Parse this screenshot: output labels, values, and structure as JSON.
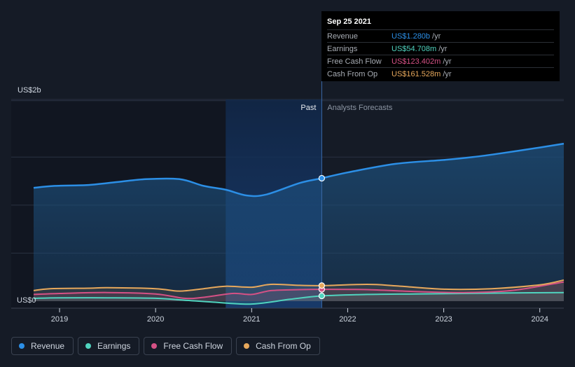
{
  "chart_data": {
    "type": "area",
    "y_unit_labels": {
      "top": "US$2b",
      "bottom": "US$0"
    },
    "ylim": [
      0,
      2.1
    ],
    "xlim": [
      2018.73,
      2024.25
    ],
    "x_ticks": [
      2019,
      2020,
      2021,
      2022,
      2023,
      2024
    ],
    "x_tick_labels": [
      "2019",
      "2020",
      "2021",
      "2022",
      "2023",
      "2024"
    ],
    "past_label": "Past",
    "forecast_label": "Analysts Forecasts",
    "divider_x": 2021.73,
    "past_highlight_start": 2020.73,
    "series": [
      {
        "name": "Revenue",
        "color": "#2c8fe6",
        "points": [
          [
            2018.73,
            1.18
          ],
          [
            2018.95,
            1.2
          ],
          [
            2019.3,
            1.21
          ],
          [
            2019.6,
            1.24
          ],
          [
            2019.9,
            1.27
          ],
          [
            2020.25,
            1.27
          ],
          [
            2020.5,
            1.2
          ],
          [
            2020.73,
            1.16
          ],
          [
            2020.95,
            1.1
          ],
          [
            2021.15,
            1.11
          ],
          [
            2021.5,
            1.23
          ],
          [
            2021.73,
            1.28
          ],
          [
            2022.0,
            1.34
          ],
          [
            2022.5,
            1.43
          ],
          [
            2023.0,
            1.47
          ],
          [
            2023.3,
            1.5
          ],
          [
            2023.6,
            1.54
          ],
          [
            2024.0,
            1.6
          ],
          [
            2024.25,
            1.64
          ]
        ]
      },
      {
        "name": "Earnings",
        "color": "#50d4bf",
        "points": [
          [
            2018.73,
            0.03
          ],
          [
            2019.0,
            0.035
          ],
          [
            2019.5,
            0.035
          ],
          [
            2020.0,
            0.03
          ],
          [
            2020.3,
            0.01
          ],
          [
            2020.6,
            -0.01
          ],
          [
            2021.0,
            -0.03
          ],
          [
            2021.4,
            0.02
          ],
          [
            2021.73,
            0.055
          ],
          [
            2022.2,
            0.07
          ],
          [
            2022.7,
            0.075
          ],
          [
            2023.2,
            0.08
          ],
          [
            2023.7,
            0.085
          ],
          [
            2024.25,
            0.09
          ]
        ]
      },
      {
        "name": "Free Cash Flow",
        "color": "#d55185",
        "points": [
          [
            2018.73,
            0.07
          ],
          [
            2019.0,
            0.08
          ],
          [
            2019.5,
            0.09
          ],
          [
            2020.0,
            0.075
          ],
          [
            2020.3,
            0.03
          ],
          [
            2020.5,
            0.04
          ],
          [
            2020.8,
            0.08
          ],
          [
            2021.0,
            0.07
          ],
          [
            2021.2,
            0.11
          ],
          [
            2021.5,
            0.12
          ],
          [
            2021.73,
            0.123
          ],
          [
            2022.2,
            0.12
          ],
          [
            2022.7,
            0.1
          ],
          [
            2023.2,
            0.09
          ],
          [
            2023.7,
            0.11
          ],
          [
            2024.25,
            0.2
          ]
        ]
      },
      {
        "name": "Cash From Op",
        "color": "#e7a85c",
        "points": [
          [
            2018.73,
            0.11
          ],
          [
            2018.9,
            0.13
          ],
          [
            2019.3,
            0.135
          ],
          [
            2019.5,
            0.14
          ],
          [
            2020.0,
            0.13
          ],
          [
            2020.25,
            0.105
          ],
          [
            2020.5,
            0.13
          ],
          [
            2020.73,
            0.155
          ],
          [
            2021.0,
            0.145
          ],
          [
            2021.2,
            0.175
          ],
          [
            2021.5,
            0.165
          ],
          [
            2021.73,
            0.162
          ],
          [
            2022.2,
            0.175
          ],
          [
            2022.5,
            0.16
          ],
          [
            2023.0,
            0.125
          ],
          [
            2023.5,
            0.13
          ],
          [
            2024.0,
            0.17
          ],
          [
            2024.25,
            0.22
          ]
        ]
      }
    ]
  },
  "tooltip": {
    "date": "Sep 25 2021",
    "rows": [
      {
        "label": "Revenue",
        "value": "US$1.280b",
        "unit": "/yr",
        "color": "#2c8fe6"
      },
      {
        "label": "Earnings",
        "value": "US$54.708m",
        "unit": "/yr",
        "color": "#50d4bf"
      },
      {
        "label": "Free Cash Flow",
        "value": "US$123.402m",
        "unit": "/yr",
        "color": "#d55185"
      },
      {
        "label": "Cash From Op",
        "value": "US$161.528m",
        "unit": "/yr",
        "color": "#e7a85c"
      }
    ]
  },
  "legend": [
    {
      "label": "Revenue",
      "color": "#2c8fe6"
    },
    {
      "label": "Earnings",
      "color": "#50d4bf"
    },
    {
      "label": "Free Cash Flow",
      "color": "#d55185"
    },
    {
      "label": "Cash From Op",
      "color": "#e7a85c"
    }
  ]
}
